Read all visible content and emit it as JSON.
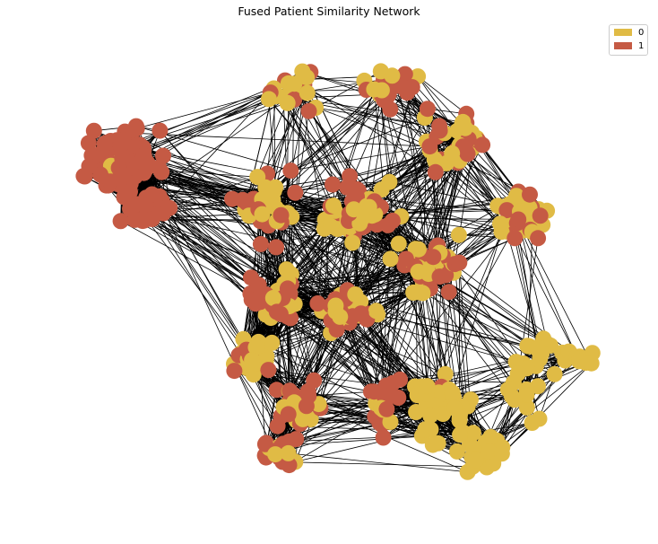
{
  "title": "Fused Patient Similarity Network",
  "legend": [
    {
      "label": "0",
      "color": "#E0BB45"
    },
    {
      "label": "1",
      "color": "#C55A44"
    }
  ],
  "colors": {
    "edge": "#000000",
    "background": "#ffffff"
  }
}
